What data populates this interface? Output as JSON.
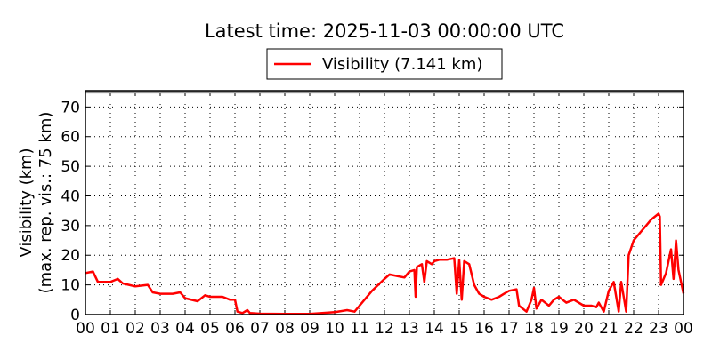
{
  "chart_data": {
    "type": "line",
    "title": "Latest time: 2025-11-03 00:00:00 UTC",
    "ylabel": "Visibility (km)",
    "ylabel2": "(max. rep. vis.: 75 km)",
    "xlabel": "",
    "xlim": [
      0,
      24
    ],
    "ylim": [
      0,
      75.5
    ],
    "max_reported_visibility": 75,
    "grid": true,
    "legend_placement": "top-center",
    "x_tick_labels": [
      "00",
      "01",
      "02",
      "03",
      "04",
      "05",
      "06",
      "07",
      "08",
      "09",
      "10",
      "11",
      "12",
      "13",
      "14",
      "15",
      "16",
      "17",
      "18",
      "19",
      "20",
      "21",
      "22",
      "23",
      "00"
    ],
    "y_ticks": [
      0,
      10,
      20,
      30,
      40,
      50,
      60,
      70
    ],
    "series": [
      {
        "name": "Visibility (7.141 km)",
        "color": "#ff0000",
        "x_unit": "hours UTC",
        "points": [
          [
            0,
            14
          ],
          [
            0.3,
            14.5
          ],
          [
            0.5,
            11
          ],
          [
            1,
            11
          ],
          [
            1.3,
            12
          ],
          [
            1.5,
            10.5
          ],
          [
            2,
            9.5
          ],
          [
            2.5,
            10
          ],
          [
            2.7,
            7.5
          ],
          [
            3,
            7
          ],
          [
            3.5,
            7
          ],
          [
            3.8,
            7.5
          ],
          [
            4,
            5.5
          ],
          [
            4.5,
            4.5
          ],
          [
            4.8,
            6.5
          ],
          [
            5,
            6
          ],
          [
            5.5,
            6
          ],
          [
            5.8,
            5
          ],
          [
            6,
            5
          ],
          [
            6.1,
            1
          ],
          [
            6.3,
            0.5
          ],
          [
            6.5,
            1.5
          ],
          [
            6.6,
            0.5
          ],
          [
            7,
            0.3
          ],
          [
            8,
            0.2
          ],
          [
            9,
            0.2
          ],
          [
            10,
            0.8
          ],
          [
            10.5,
            1.5
          ],
          [
            10.8,
            1
          ],
          [
            11,
            3
          ],
          [
            11.5,
            8
          ],
          [
            12,
            12
          ],
          [
            12.2,
            13.5
          ],
          [
            12.5,
            13
          ],
          [
            12.8,
            12.5
          ],
          [
            13,
            14.5
          ],
          [
            13.2,
            15
          ],
          [
            13.25,
            6
          ],
          [
            13.3,
            16
          ],
          [
            13.5,
            17
          ],
          [
            13.6,
            11
          ],
          [
            13.7,
            18
          ],
          [
            13.9,
            17
          ],
          [
            14,
            18
          ],
          [
            14.2,
            18.5
          ],
          [
            14.5,
            18.5
          ],
          [
            14.8,
            19
          ],
          [
            14.9,
            7
          ],
          [
            15,
            18.5
          ],
          [
            15.1,
            5
          ],
          [
            15.2,
            18
          ],
          [
            15.4,
            17
          ],
          [
            15.6,
            10
          ],
          [
            15.8,
            7
          ],
          [
            16,
            6
          ],
          [
            16.3,
            5
          ],
          [
            16.6,
            6
          ],
          [
            16.8,
            7
          ],
          [
            17,
            8
          ],
          [
            17.3,
            8.5
          ],
          [
            17.4,
            3
          ],
          [
            17.7,
            1
          ],
          [
            17.9,
            5
          ],
          [
            18,
            9
          ],
          [
            18.1,
            2
          ],
          [
            18.3,
            5
          ],
          [
            18.6,
            3
          ],
          [
            18.8,
            5
          ],
          [
            19,
            6
          ],
          [
            19.3,
            4
          ],
          [
            19.6,
            5
          ],
          [
            20,
            3
          ],
          [
            20.3,
            3
          ],
          [
            20.5,
            2.5
          ],
          [
            20.6,
            4
          ],
          [
            20.8,
            1
          ],
          [
            21,
            8
          ],
          [
            21.2,
            11
          ],
          [
            21.4,
            1
          ],
          [
            21.5,
            11
          ],
          [
            21.7,
            1
          ],
          [
            21.8,
            20
          ],
          [
            22,
            25
          ],
          [
            22.3,
            28
          ],
          [
            22.5,
            30
          ],
          [
            22.7,
            32
          ],
          [
            23,
            34
          ],
          [
            23.05,
            33
          ],
          [
            23.1,
            10
          ],
          [
            23.3,
            14
          ],
          [
            23.5,
            22
          ],
          [
            23.6,
            12
          ],
          [
            23.7,
            25
          ],
          [
            23.8,
            15
          ],
          [
            24,
            7.141
          ]
        ]
      }
    ]
  }
}
